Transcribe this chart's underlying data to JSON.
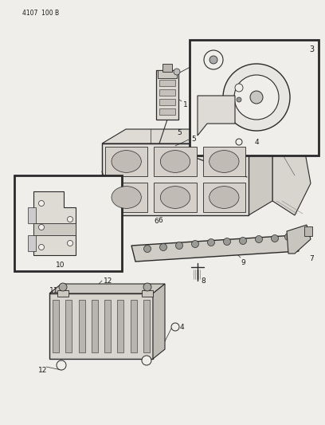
{
  "bg_color": "#f0eeeb",
  "line_color": "#2a2a2a",
  "text_color": "#1a1a1a",
  "header_text": "4107  100 B",
  "fig_width": 4.08,
  "fig_height": 5.33,
  "dpi": 100
}
